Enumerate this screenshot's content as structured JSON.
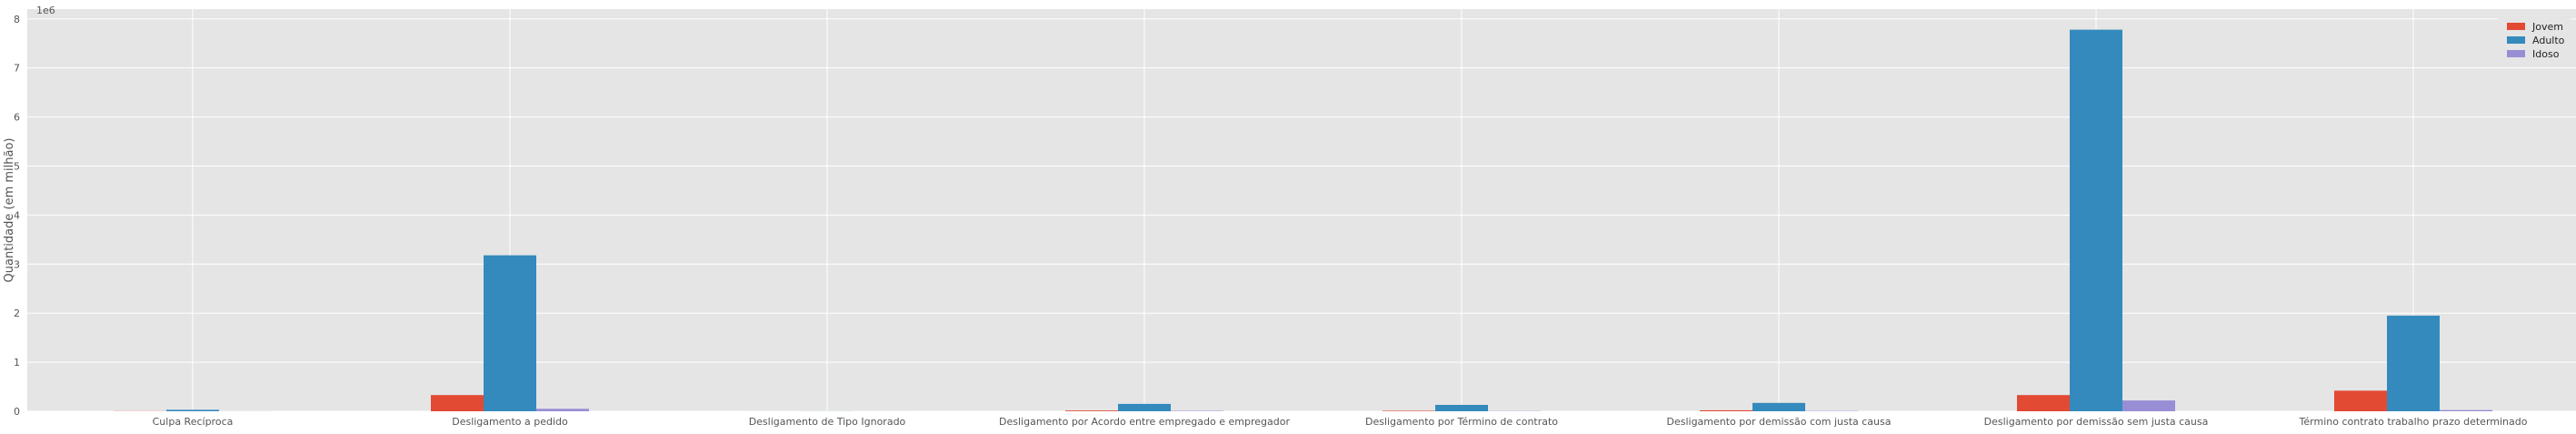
{
  "chart_data": {
    "type": "bar",
    "title": "",
    "xlabel": "",
    "ylabel": "Quantidade (em milhão)",
    "y_offset_text": "1e6",
    "ylim": [
      0,
      8200000
    ],
    "yticks": [
      0,
      1,
      2,
      3,
      4,
      5,
      6,
      7,
      8
    ],
    "grid": true,
    "legend_position": "top-right",
    "categories": [
      "Culpa Recíproca",
      "Desligamento a pedido",
      "Desligamento de Tipo Ignorado",
      "Desligamento por Acordo entre empregado e empregador",
      "Desligamento por Término de contrato",
      "Desligamento por demissão com justa causa",
      "Desligamento por demissão sem justa causa",
      "Término contrato trabalho prazo determinado"
    ],
    "series": [
      {
        "name": "Jovem",
        "color": "#E24A33",
        "values": [
          3000,
          330000,
          500,
          15000,
          10000,
          20000,
          330000,
          420000
        ]
      },
      {
        "name": "Adulto",
        "color": "#348ABD",
        "values": [
          30000,
          3180000,
          1500,
          150000,
          130000,
          170000,
          7780000,
          1950000
        ]
      },
      {
        "name": "Idoso",
        "color": "#988ED5",
        "values": [
          1000,
          50000,
          200,
          8000,
          5000,
          6000,
          220000,
          25000
        ]
      }
    ]
  }
}
